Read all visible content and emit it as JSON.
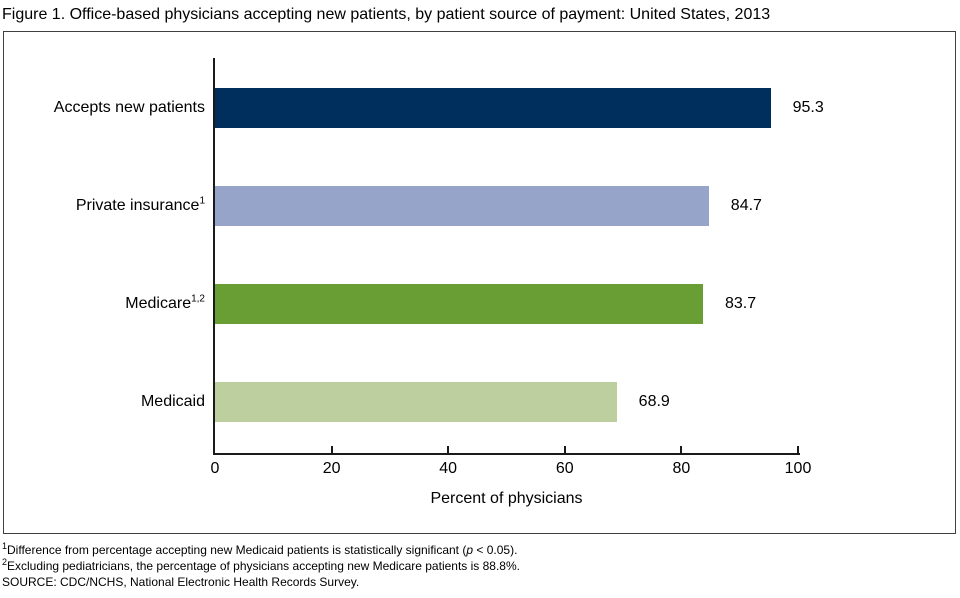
{
  "chart_data": {
    "type": "bar",
    "orientation": "horizontal",
    "title": "Figure 1. Office-based physicians accepting new patients, by patient source of payment: United States, 2013",
    "xlabel": "Percent of physicians",
    "xlim": [
      0,
      100
    ],
    "xticks": [
      0,
      20,
      40,
      60,
      80,
      100
    ],
    "grid": false,
    "legend": "none",
    "categories": [
      "Accepts new patients",
      "Private insurance",
      "Medicare",
      "Medicaid"
    ],
    "category_superscripts": [
      "",
      "1",
      "1,2",
      ""
    ],
    "values": [
      95.3,
      84.7,
      83.7,
      68.9
    ],
    "value_labels": [
      "95.3",
      "84.7",
      "83.7",
      "68.9"
    ],
    "bar_colors": [
      "#002f5e",
      "#95a4c8",
      "#699e35",
      "#bdcf9e"
    ]
  },
  "footnotes": {
    "note1": {
      "sup": "1",
      "pre": "Difference from percentage accepting new Medicaid patients is statistically significant (",
      "italic": "p",
      "post": " < 0.05)."
    },
    "note2": {
      "sup": "2",
      "text": "Excluding pediatricians, the percentage of physicians accepting new Medicare patients is 88.8%."
    },
    "source": "SOURCE: CDC/NCHS, National Electronic Health Records Survey."
  }
}
